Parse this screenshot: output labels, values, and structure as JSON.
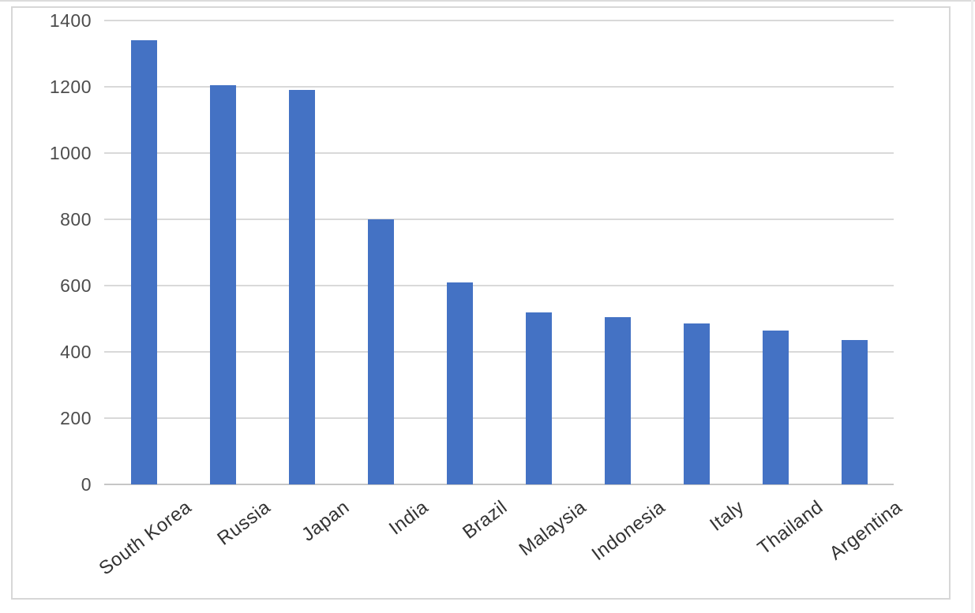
{
  "chart_data": {
    "type": "bar",
    "categories": [
      "South Korea",
      "Russia",
      "Japan",
      "India",
      "Brazil",
      "Malaysia",
      "Indonesia",
      "Italy",
      "Thailand",
      "Argentina"
    ],
    "values": [
      1340,
      1205,
      1190,
      800,
      610,
      520,
      505,
      485,
      465,
      435
    ],
    "title": "",
    "xlabel": "",
    "ylabel": "",
    "ylim": [
      0,
      1400
    ],
    "yticks": [
      0,
      200,
      400,
      600,
      800,
      1000,
      1200,
      1400
    ],
    "grid": true,
    "legend": false,
    "x_label_rotation_deg": -37,
    "colors": {
      "bar": "#4472c4",
      "gridline": "#d9d9d9",
      "axis_line": "#c6c6c6",
      "tick_label": "#4d4d4d",
      "category_label": "#333333",
      "frame_border": "#d7d7d7",
      "background": "#ffffff"
    }
  }
}
